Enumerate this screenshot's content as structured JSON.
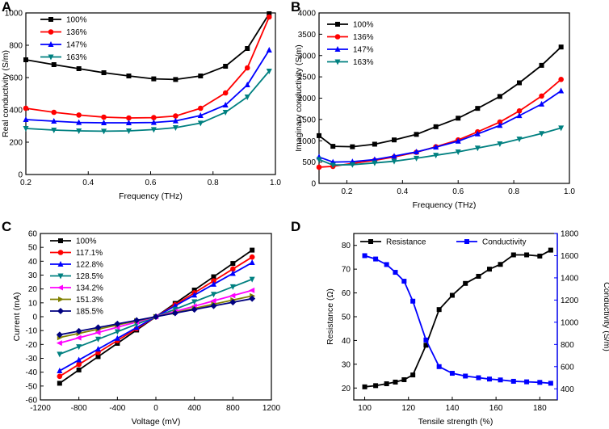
{
  "chart_data": [
    {
      "panel": "A",
      "type": "line",
      "xlabel": "Frequency (THz)",
      "ylabel": "Real conductivity (S/m)",
      "xlim": [
        0.2,
        1.0
      ],
      "ylim": [
        0,
        1000
      ],
      "xticks": [
        "0.2",
        "0.4",
        "0.6",
        "0.8",
        "1.0"
      ],
      "yticks": [
        "0",
        "200",
        "400",
        "600",
        "800",
        "1000"
      ],
      "x": [
        0.2,
        0.29,
        0.37,
        0.45,
        0.53,
        0.61,
        0.68,
        0.76,
        0.84,
        0.91,
        0.98
      ],
      "series": [
        {
          "name": "100%",
          "color": "#000000",
          "marker": "square",
          "values": [
            710,
            680,
            655,
            630,
            610,
            592,
            588,
            610,
            670,
            780,
            995
          ]
        },
        {
          "name": "136%",
          "color": "#ff0000",
          "marker": "circle",
          "values": [
            410,
            385,
            368,
            355,
            350,
            352,
            362,
            410,
            505,
            660,
            975
          ]
        },
        {
          "name": "147%",
          "color": "#0000ff",
          "marker": "triangle-up",
          "values": [
            340,
            330,
            322,
            320,
            320,
            322,
            332,
            365,
            430,
            555,
            770
          ]
        },
        {
          "name": "163%",
          "color": "#008080",
          "marker": "triangle-down",
          "values": [
            285,
            275,
            270,
            268,
            270,
            278,
            290,
            318,
            385,
            480,
            640
          ]
        }
      ]
    },
    {
      "panel": "B",
      "type": "line",
      "xlabel": "Frequency (THz)",
      "ylabel": "Imaginary conductivity (S/m)",
      "xlim": [
        0.1,
        1.0
      ],
      "ylim": [
        0,
        4000
      ],
      "xticks": [
        "0.2",
        "0.4",
        "0.6",
        "0.8",
        "1.0"
      ],
      "yticks": [
        "0",
        "500",
        "1000",
        "1500",
        "2000",
        "2500",
        "3000",
        "3500",
        "4000"
      ],
      "x": [
        0.1,
        0.15,
        0.22,
        0.3,
        0.37,
        0.45,
        0.52,
        0.6,
        0.67,
        0.75,
        0.82,
        0.9,
        0.97
      ],
      "series": [
        {
          "name": "100%",
          "color": "#000000",
          "marker": "square",
          "values": [
            1120,
            870,
            860,
            920,
            1020,
            1150,
            1330,
            1530,
            1760,
            2040,
            2360,
            2770,
            3200
          ]
        },
        {
          "name": "136%",
          "color": "#ff0000",
          "marker": "circle",
          "values": [
            380,
            400,
            470,
            540,
            620,
            730,
            860,
            1020,
            1210,
            1440,
            1700,
            2050,
            2440
          ]
        },
        {
          "name": "147%",
          "color": "#0000ff",
          "marker": "triangle-up",
          "values": [
            620,
            500,
            510,
            560,
            640,
            740,
            850,
            990,
            1160,
            1360,
            1590,
            1860,
            2170
          ]
        },
        {
          "name": "163%",
          "color": "#008080",
          "marker": "triangle-down",
          "values": [
            560,
            430,
            440,
            480,
            520,
            590,
            660,
            740,
            830,
            930,
            1040,
            1170,
            1300
          ]
        }
      ]
    },
    {
      "panel": "C",
      "type": "line",
      "xlabel": "Voltage (mV)",
      "ylabel": "Current (mA)",
      "xlim": [
        -1200,
        1200
      ],
      "ylim": [
        -60,
        60
      ],
      "xticks": [
        "-1200",
        "-800",
        "-400",
        "0",
        "400",
        "800",
        "1200"
      ],
      "xtick_values": [
        -1200,
        -800,
        -400,
        0,
        400,
        800,
        1200
      ],
      "yticks": [
        "-60",
        "-50",
        "-40",
        "-30",
        "-20",
        "-10",
        "0",
        "10",
        "20",
        "30",
        "40",
        "50",
        "60"
      ],
      "x": [
        -1000,
        -800,
        -600,
        -400,
        -200,
        0,
        200,
        400,
        600,
        800,
        1000
      ],
      "series": [
        {
          "name": "100%",
          "color": "#000000",
          "marker": "square",
          "slope": 0.048
        },
        {
          "name": "117.1%",
          "color": "#ff0000",
          "marker": "circle",
          "slope": 0.043
        },
        {
          "name": "122.8%",
          "color": "#0000ff",
          "marker": "triangle-up",
          "slope": 0.039
        },
        {
          "name": "128.5%",
          "color": "#008080",
          "marker": "triangle-down",
          "slope": 0.027
        },
        {
          "name": "134.2%",
          "color": "#ff00ff",
          "marker": "triangle-left",
          "slope": 0.019
        },
        {
          "name": "151.3%",
          "color": "#808000",
          "marker": "triangle-right",
          "slope": 0.015
        },
        {
          "name": "185.5%",
          "color": "#000080",
          "marker": "diamond",
          "slope": 0.013
        }
      ]
    },
    {
      "panel": "D",
      "type": "line",
      "xlabel": "Tensile strength (%)",
      "ylabel": "Resistance (Ω)",
      "ylabel_right": "Conductivity (S/m)",
      "xlim": [
        95,
        188
      ],
      "ylim": [
        15,
        85
      ],
      "ylim_right": [
        300,
        1800
      ],
      "xticks": [
        "100",
        "120",
        "140",
        "160",
        "180"
      ],
      "yticks": [
        "20",
        "30",
        "40",
        "50",
        "60",
        "70",
        "80"
      ],
      "yticks_right": [
        "400",
        "600",
        "800",
        "1000",
        "1200",
        "1400",
        "1600",
        "1800"
      ],
      "x": [
        100,
        105,
        110,
        114,
        118,
        122,
        128,
        134,
        140,
        146,
        152,
        157,
        162,
        168,
        174,
        180,
        185
      ],
      "series": [
        {
          "name": "Resistance",
          "color": "#000000",
          "marker": "square",
          "axis": "left",
          "values": [
            20.5,
            21,
            21.8,
            22.5,
            23.5,
            25.5,
            38,
            53,
            59,
            64,
            67,
            70,
            72,
            76,
            76,
            75.5,
            78
          ]
        },
        {
          "name": "Conductivity",
          "color": "#0000ff",
          "marker": "square",
          "axis": "right",
          "values": [
            1600,
            1570,
            1520,
            1450,
            1370,
            1190,
            840,
            600,
            540,
            515,
            500,
            488,
            480,
            468,
            463,
            458,
            450
          ]
        }
      ]
    }
  ]
}
